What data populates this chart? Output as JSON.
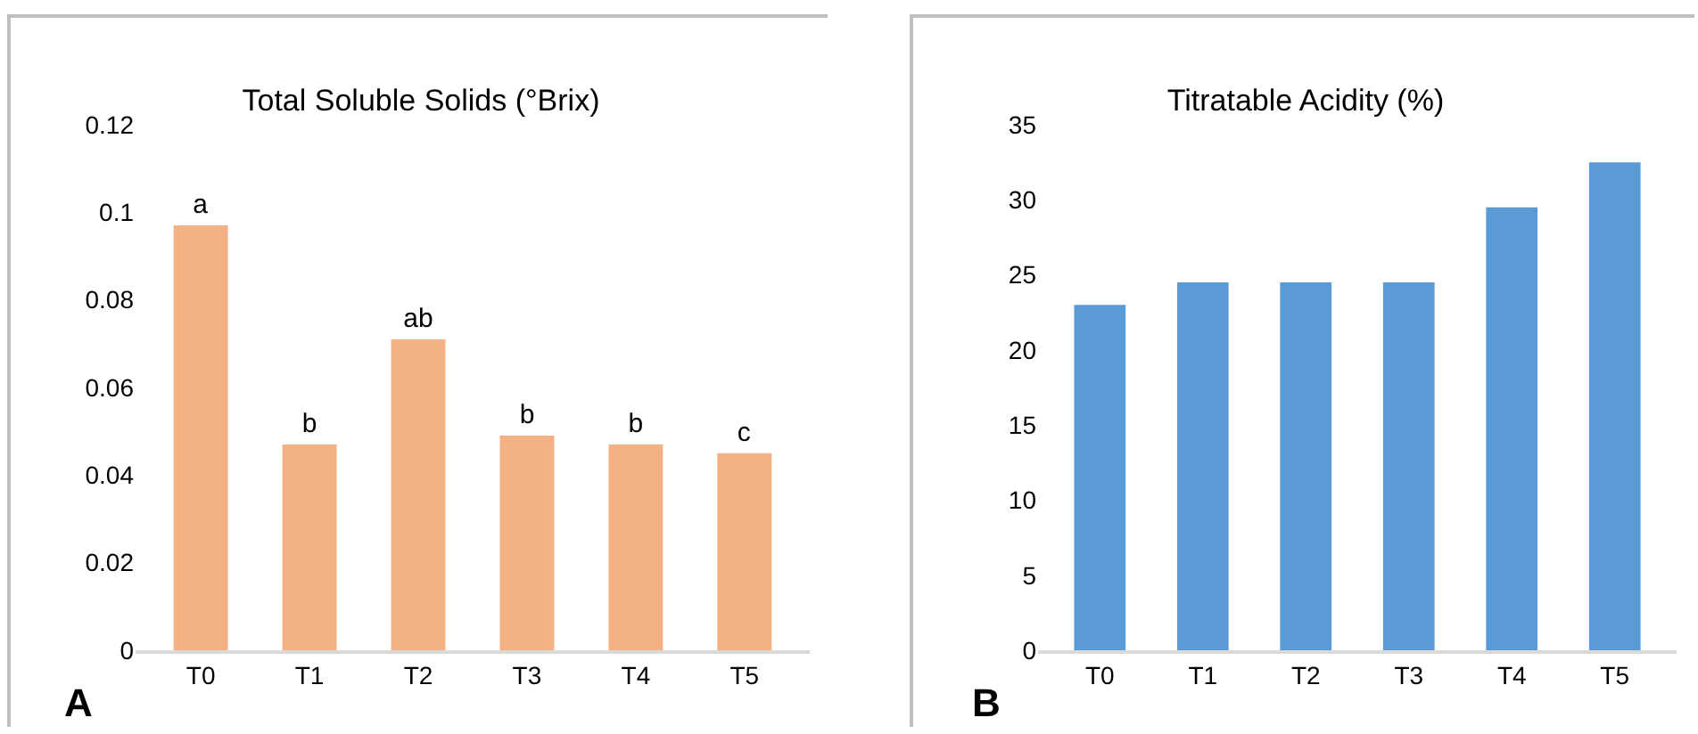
{
  "chart_data": [
    {
      "type": "bar",
      "title": "Total Soluble Solids (°Brix)",
      "categories": [
        "T0",
        "T1",
        "T2",
        "T3",
        "T4",
        "T5"
      ],
      "values": [
        0.097,
        0.047,
        0.071,
        0.049,
        0.047,
        0.045
      ],
      "value_labels": [
        "a",
        "b",
        "ab",
        "b",
        "b",
        "c"
      ],
      "color": "#f4b183",
      "ylim": [
        0,
        0.12
      ],
      "yticks": [
        0,
        0.02,
        0.04,
        0.06,
        0.08,
        0.1,
        0.12
      ],
      "grid": false,
      "annotations": [
        "A"
      ]
    },
    {
      "type": "bar",
      "title": "Titratable Acidity (%)",
      "categories": [
        "T0",
        "T1",
        "T2",
        "T3",
        "T4",
        "T5"
      ],
      "values": [
        23,
        24.5,
        24.5,
        24.5,
        29.5,
        32.5
      ],
      "color": "#5b9bd5",
      "ylim": [
        0,
        35
      ],
      "yticks": [
        0,
        5,
        10,
        15,
        20,
        25,
        30,
        35
      ],
      "grid": false,
      "annotations": [
        "B"
      ]
    }
  ]
}
